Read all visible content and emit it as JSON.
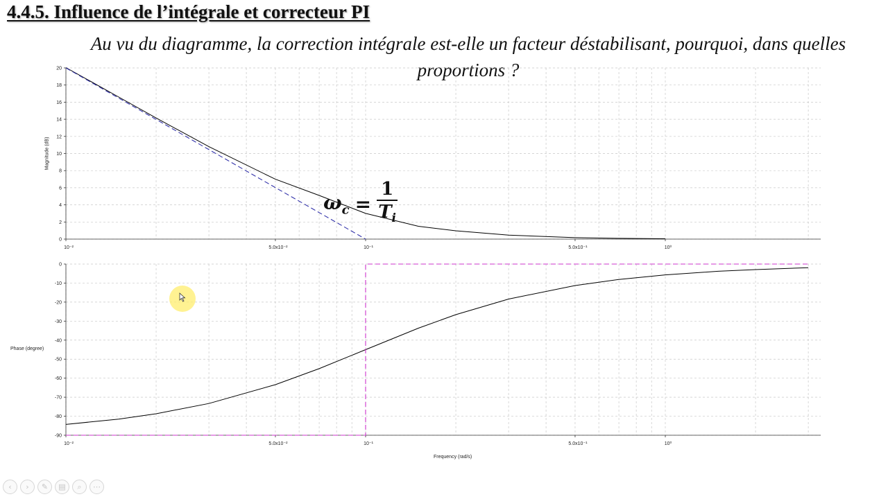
{
  "slide": {
    "title": "4.4.5. Influence de l’intégrale et correcteur PI",
    "question": "Au vu du diagramme, la correction intégrale est-elle un facteur déstabilisant, pourquoi, dans quelles proportions ?"
  },
  "formula": {
    "lhs": "ω",
    "lhs_sub": "c",
    "eq": "=",
    "numerator": "1",
    "denominator": "T",
    "denominator_sub": "i"
  },
  "colors": {
    "curve": "#000000",
    "asymptote_magnitude": "#3333aa",
    "asymptote_phase": "#cc33cc",
    "grid": "#c8c8c8",
    "cursor_highlight": "#ffee6e"
  },
  "toolbar": {
    "icons": [
      "prev-icon",
      "next-icon",
      "pen-icon",
      "slides-icon",
      "zoom-icon",
      "more-icon"
    ],
    "glyphs": [
      "‹",
      "›",
      "✎",
      "▤",
      "⌕",
      "⋯"
    ]
  },
  "chart_data": [
    {
      "type": "line",
      "xscale": "log",
      "xlim": [
        0.01,
        3.0
      ],
      "ylim": [
        0,
        20
      ],
      "xlabel": "",
      "ylabel": "Magnitude (dB)",
      "x_ticks": [
        "10⁻²",
        "5.0x10⁻²",
        "10⁻¹",
        "5.0x10⁻¹",
        "10⁰"
      ],
      "y_ticks": [
        "0",
        "2",
        "4",
        "6",
        "8",
        "10",
        "12",
        "14",
        "16",
        "18",
        "20"
      ],
      "grid": true,
      "series": [
        {
          "style": "solid",
          "x": [
            0.01,
            0.015,
            0.02,
            0.03,
            0.05,
            0.07,
            0.1,
            0.15,
            0.2,
            0.3,
            0.5,
            0.7,
            1.0
          ],
          "y": [
            20.04,
            16.6,
            14.15,
            10.8,
            7.0,
            5.1,
            3.0,
            1.5,
            0.97,
            0.46,
            0.17,
            0.09,
            0.04
          ]
        },
        {
          "style": "dashed",
          "x": [
            0.01,
            0.1
          ],
          "y": [
            20,
            0
          ]
        }
      ]
    },
    {
      "type": "line",
      "xscale": "log",
      "xlim": [
        0.01,
        3.0
      ],
      "ylim": [
        -90,
        0
      ],
      "xlabel": "Frequency (rad/s)",
      "ylabel": "Phase (degree)",
      "x_ticks": [
        "10⁻²",
        "5.0x10⁻²",
        "10⁻¹",
        "5.0x10⁻¹",
        "10⁰"
      ],
      "y_ticks": [
        "0",
        "-10",
        "-20",
        "-30",
        "-40",
        "-50",
        "-60",
        "-70",
        "-80",
        "-90"
      ],
      "grid": true,
      "series": [
        {
          "style": "solid",
          "x": [
            0.01,
            0.015,
            0.02,
            0.03,
            0.05,
            0.07,
            0.1,
            0.15,
            0.2,
            0.3,
            0.5,
            0.7,
            1.0,
            1.5,
            2.0,
            3.0
          ],
          "y": [
            -84.3,
            -81.5,
            -78.7,
            -73.3,
            -63.4,
            -55.0,
            -45.0,
            -33.7,
            -26.6,
            -18.4,
            -11.3,
            -8.1,
            -5.7,
            -3.8,
            -2.9,
            -1.9
          ]
        },
        {
          "style": "dashed",
          "x": [
            0.01,
            0.1,
            0.1,
            3.0
          ],
          "y": [
            -90,
            -90,
            0,
            0
          ]
        }
      ]
    }
  ]
}
